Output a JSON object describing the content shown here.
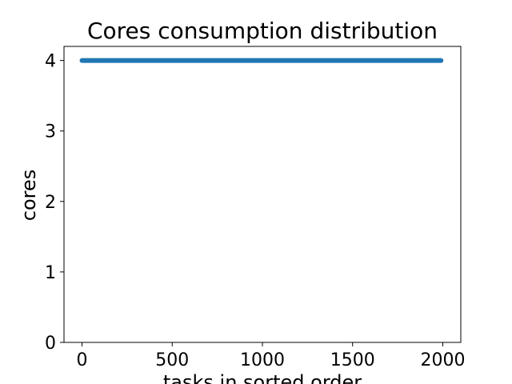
{
  "chart_data": {
    "type": "line",
    "title": "Cores consumption distribution",
    "xlabel": "tasks in sorted order",
    "ylabel": "cores",
    "x_ticks": [
      0,
      500,
      1000,
      1500,
      2000
    ],
    "y_ticks": [
      0,
      1,
      2,
      3,
      4
    ],
    "xlim": [
      -100,
      2100
    ],
    "ylim": [
      0,
      4.2
    ],
    "grid": false,
    "series": [
      {
        "color": "#1f77b4",
        "x": [
          0,
          1990
        ],
        "y": [
          4,
          4
        ]
      }
    ]
  }
}
